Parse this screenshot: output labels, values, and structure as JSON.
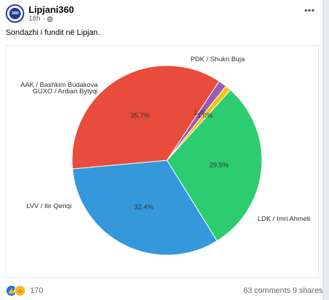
{
  "post": {
    "page_name": "Lipjani360",
    "time": "18h",
    "separator": "·",
    "caption": "Sondazhi i fundit në Lipjan.",
    "avatar_icon": "lipjani360-logo-icon",
    "more_icon": "more-horizontal-icon",
    "privacy_icon": "globe-icon"
  },
  "footer": {
    "reaction_count": "170",
    "comments": "63 comments",
    "shares": "9 shares",
    "reaction_icons": [
      "like-icon",
      "haha-icon"
    ]
  },
  "chart_data": {
    "type": "pie",
    "title": "",
    "slices": [
      {
        "label": "PDK / Shukri Buja",
        "value": 29.5,
        "display": "29.5%",
        "color": "#2ecc71"
      },
      {
        "label": "LDK / Imri Ahmeti",
        "value": 32.4,
        "display": "32.4%",
        "color": "#3498db"
      },
      {
        "label": "LVV / Ilir Qeriqi",
        "value": 35.7,
        "display": "35.7%",
        "color": "#e74c3c"
      },
      {
        "label": "GUXO / Ardian Bytyqi",
        "value": 1.4,
        "display": "1.4%",
        "color": "#9b59b6"
      },
      {
        "label": "AAK / Bashkim Budakova",
        "value": 1.0,
        "display": "1.0%",
        "color": "#f1c40f"
      }
    ]
  }
}
